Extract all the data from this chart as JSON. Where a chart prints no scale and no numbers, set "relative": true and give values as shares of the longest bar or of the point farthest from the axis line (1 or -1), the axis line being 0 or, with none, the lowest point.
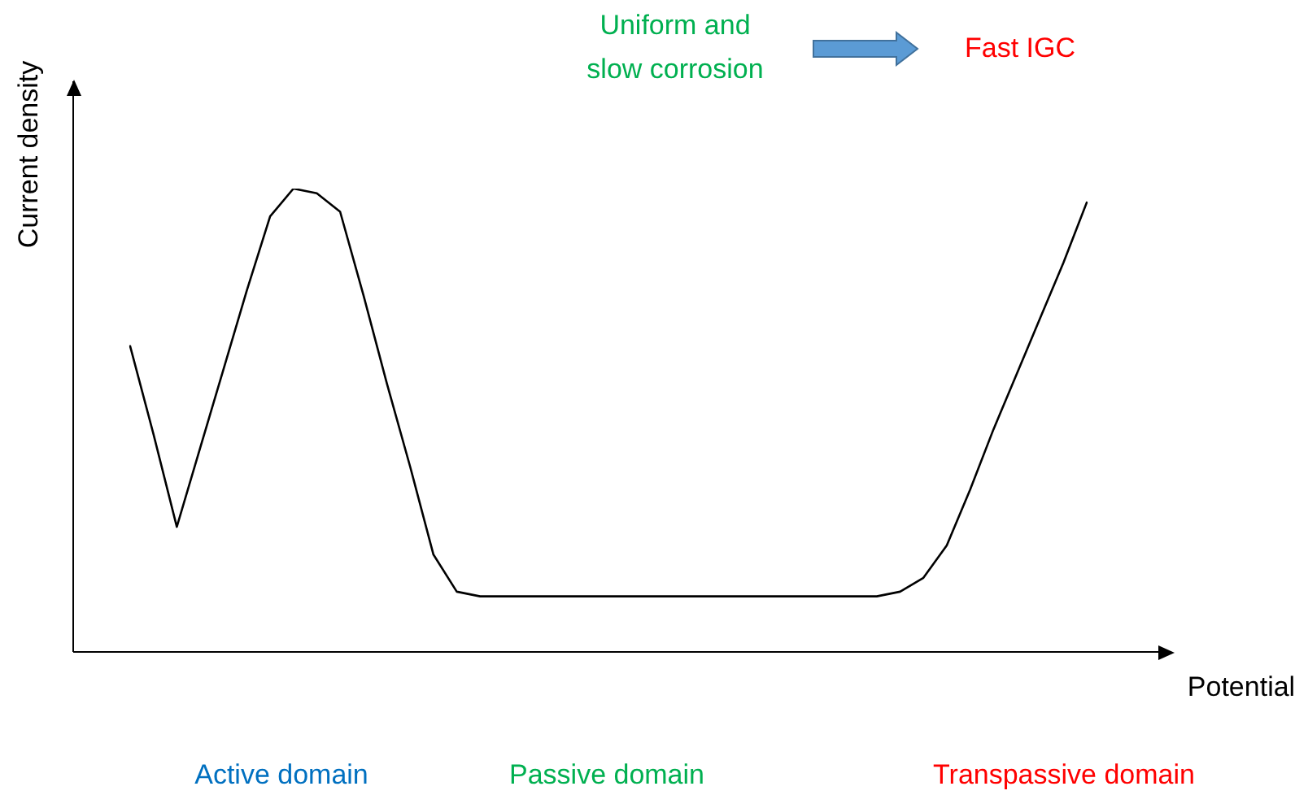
{
  "chart_data": {
    "type": "line",
    "relative": true,
    "xlabel": "Potential",
    "ylabel": "Current density",
    "categories": [
      null,
      null,
      null,
      null,
      null,
      null,
      null,
      null,
      null,
      null,
      null,
      null,
      null,
      null,
      null,
      null,
      null,
      null,
      null,
      null,
      null,
      null,
      null,
      null,
      null,
      null,
      null,
      null,
      null,
      null,
      null,
      null,
      null,
      null,
      null,
      null,
      null,
      null,
      null,
      null,
      null,
      null
    ],
    "series": [
      {
        "color": "#000000",
        "values": [
          0.66,
          0.47,
          0.27,
          0.44,
          0.61,
          0.78,
          0.94,
          1.0,
          0.99,
          0.95,
          0.77,
          0.58,
          0.4,
          0.21,
          0.13,
          0.12,
          0.12,
          0.12,
          0.12,
          0.12,
          0.12,
          0.12,
          0.12,
          0.12,
          0.12,
          0.12,
          0.12,
          0.12,
          0.12,
          0.12,
          0.12,
          0.12,
          0.12,
          0.13,
          0.16,
          0.23,
          0.35,
          0.48,
          0.6,
          0.72,
          0.84,
          0.97
        ]
      }
    ],
    "marker": "none",
    "line_style": "solid",
    "annotations": [
      "Active domain",
      "Passive domain",
      "Transpassive domain",
      "Uniform and slow corrosion",
      "Fast IGC"
    ]
  }
}
